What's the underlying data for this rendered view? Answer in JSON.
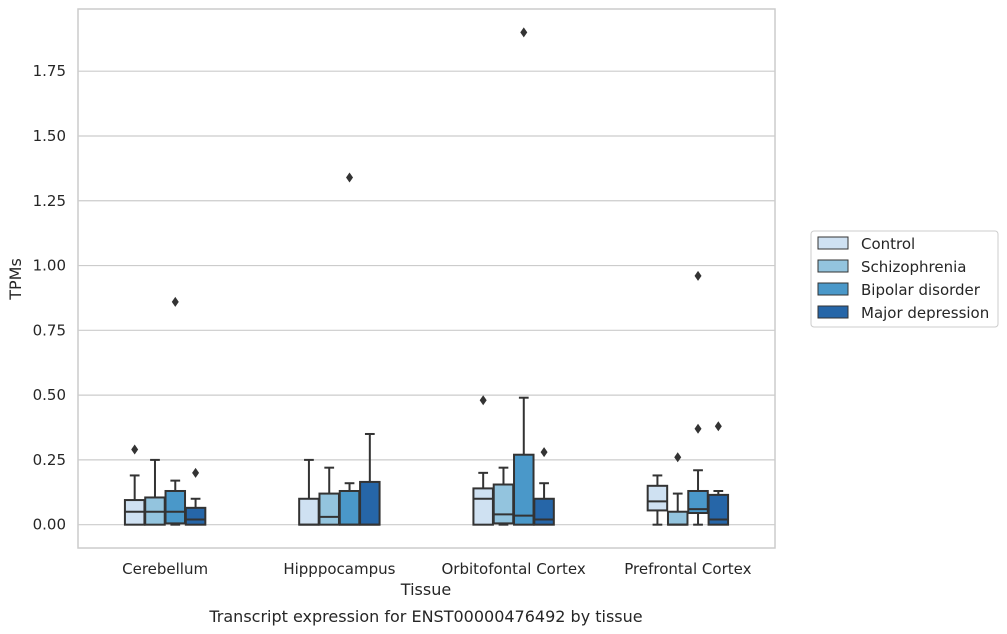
{
  "caption": "Transcript expression for ENST00000476492 by tissue",
  "chart_data": {
    "type": "box",
    "xlabel": "Tissue",
    "ylabel": "TPMs",
    "ylim": [
      -0.09,
      1.99
    ],
    "yticks": [
      0.0,
      0.25,
      0.5,
      0.75,
      1.0,
      1.25,
      1.5,
      1.75
    ],
    "ytick_labels": [
      "0.00",
      "0.25",
      "0.50",
      "0.75",
      "1.00",
      "1.25",
      "1.50",
      "1.75"
    ],
    "grid": "horizontal",
    "legend_position": "right",
    "categories": [
      "Cerebellum",
      "Hipppocampus",
      "Orbitofontal Cortex",
      "Prefrontal Cortex"
    ],
    "series": [
      {
        "name": "Control",
        "color": "#cfe1f2",
        "boxes": [
          {
            "whislo": 0.0,
            "q1": 0.0,
            "med": 0.05,
            "q3": 0.095,
            "whishi": 0.19,
            "fliers": [
              0.29
            ]
          },
          {
            "whislo": 0.0,
            "q1": 0.0,
            "med": 0.0,
            "q3": 0.1,
            "whishi": 0.25,
            "fliers": []
          },
          {
            "whislo": 0.0,
            "q1": 0.0,
            "med": 0.1,
            "q3": 0.14,
            "whishi": 0.2,
            "fliers": [
              0.48
            ]
          },
          {
            "whislo": 0.0,
            "q1": 0.055,
            "med": 0.09,
            "q3": 0.15,
            "whishi": 0.19,
            "fliers": []
          }
        ]
      },
      {
        "name": "Schizophrenia",
        "color": "#93c4de",
        "boxes": [
          {
            "whislo": 0.0,
            "q1": 0.0,
            "med": 0.05,
            "q3": 0.105,
            "whishi": 0.25,
            "fliers": []
          },
          {
            "whislo": 0.0,
            "q1": 0.0,
            "med": 0.03,
            "q3": 0.12,
            "whishi": 0.22,
            "fliers": []
          },
          {
            "whislo": 0.0,
            "q1": 0.005,
            "med": 0.04,
            "q3": 0.155,
            "whishi": 0.22,
            "fliers": []
          },
          {
            "whislo": 0.0,
            "q1": 0.0,
            "med": 0.0,
            "q3": 0.05,
            "whishi": 0.12,
            "fliers": [
              0.26
            ]
          }
        ]
      },
      {
        "name": "Bipolar disorder",
        "color": "#4a98c9",
        "boxes": [
          {
            "whislo": 0.0,
            "q1": 0.005,
            "med": 0.05,
            "q3": 0.13,
            "whishi": 0.17,
            "fliers": [
              0.86
            ]
          },
          {
            "whislo": 0.0,
            "q1": 0.0,
            "med": 0.0,
            "q3": 0.13,
            "whishi": 0.16,
            "fliers": [
              1.34
            ]
          },
          {
            "whislo": 0.0,
            "q1": 0.0,
            "med": 0.035,
            "q3": 0.27,
            "whishi": 0.49,
            "fliers": [
              1.9
            ]
          },
          {
            "whislo": 0.0,
            "q1": 0.045,
            "med": 0.06,
            "q3": 0.13,
            "whishi": 0.21,
            "fliers": [
              0.37,
              0.96
            ]
          }
        ]
      },
      {
        "name": "Major depression",
        "color": "#2666a8",
        "boxes": [
          {
            "whislo": 0.0,
            "q1": 0.0,
            "med": 0.02,
            "q3": 0.065,
            "whishi": 0.1,
            "fliers": [
              0.2
            ]
          },
          {
            "whislo": 0.0,
            "q1": 0.0,
            "med": 0.0,
            "q3": 0.165,
            "whishi": 0.35,
            "fliers": []
          },
          {
            "whislo": 0.0,
            "q1": 0.0,
            "med": 0.02,
            "q3": 0.1,
            "whishi": 0.16,
            "fliers": [
              0.28
            ]
          },
          {
            "whislo": 0.0,
            "q1": 0.0,
            "med": 0.02,
            "q3": 0.115,
            "whishi": 0.13,
            "fliers": [
              0.38
            ]
          }
        ]
      }
    ]
  }
}
